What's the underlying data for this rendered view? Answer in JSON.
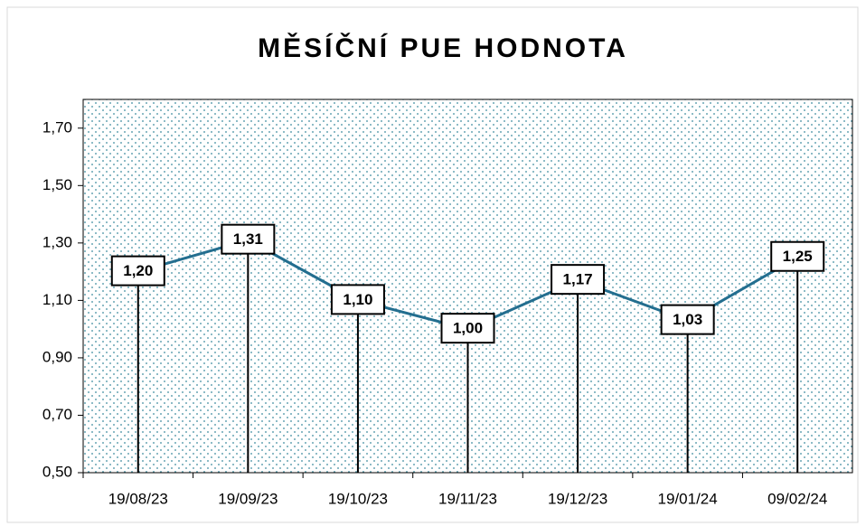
{
  "chart_data": {
    "type": "line",
    "title": "MĚSÍČNÍ PUE HODNOTA",
    "categories": [
      "19/08/23",
      "19/09/23",
      "19/10/23",
      "19/11/23",
      "19/12/23",
      "19/01/24",
      "09/02/24"
    ],
    "values": [
      1.2,
      1.31,
      1.1,
      1.0,
      1.17,
      1.03,
      1.25
    ],
    "value_labels": [
      "1,20",
      "1,31",
      "1,10",
      "1,00",
      "1,17",
      "1,03",
      "1,25"
    ],
    "color": "#236e8f",
    "ylim": [
      0.5,
      1.8
    ],
    "yticks": [
      {
        "value": 0.5,
        "label": "0,50"
      },
      {
        "value": 0.7,
        "label": "0,70"
      },
      {
        "value": 0.9,
        "label": "0,90"
      },
      {
        "value": 1.1,
        "label": "1,10"
      },
      {
        "value": 1.3,
        "label": "1,30"
      },
      {
        "value": 1.5,
        "label": "1,50"
      },
      {
        "value": 1.7,
        "label": "1,70"
      }
    ]
  }
}
